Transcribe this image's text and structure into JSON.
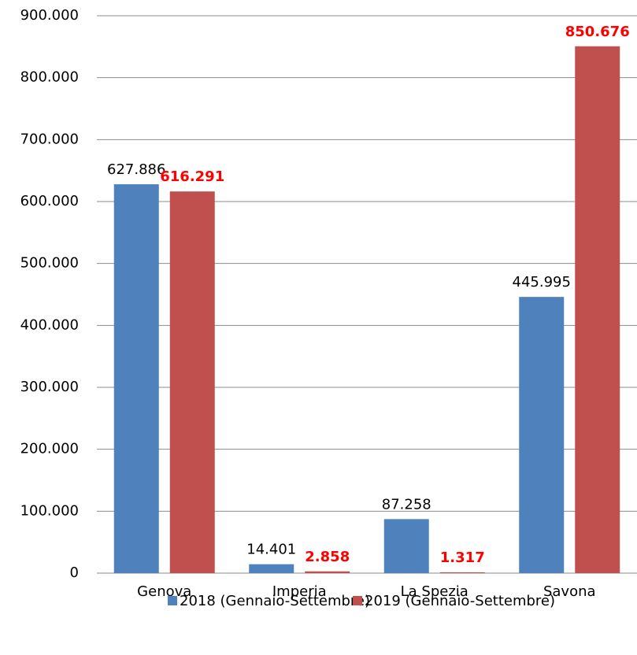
{
  "chart_data": {
    "type": "bar",
    "categories": [
      "Genova",
      "Imperia",
      "La Spezia",
      "Savona"
    ],
    "series": [
      {
        "name": "2018 (Gennaio-Settembre)",
        "color": "#4f81bd",
        "label_color": "#000000",
        "label_bold": false,
        "values": [
          627886,
          14401,
          87258,
          445995
        ],
        "value_labels": [
          "627.886",
          "14.401",
          "87.258",
          "445.995"
        ]
      },
      {
        "name": "2019 (Gennaio-Settembre)",
        "color": "#c0504d",
        "label_color": "#ff0000",
        "label_bold": true,
        "values": [
          616291,
          2858,
          1317,
          850676
        ],
        "value_labels": [
          "616.291",
          "2.858",
          "1.317",
          "850.676"
        ]
      }
    ],
    "ylim": [
      0,
      900000
    ],
    "yticks": [
      0,
      {
        "value": 100000,
        "label": "100.000"
      },
      {
        "value": 200000,
        "label": "200.000"
      },
      {
        "value": 300000,
        "label": "300.000"
      },
      {
        "value": 400000,
        "label": "400.000"
      },
      {
        "value": 500000,
        "label": "500.000"
      },
      {
        "value": 600000,
        "label": "600.000"
      },
      {
        "value": 700000,
        "label": "700.000"
      },
      {
        "value": 800000,
        "label": "800.000"
      },
      {
        "value": 900000,
        "label": "900.000"
      }
    ],
    "grid": true
  }
}
